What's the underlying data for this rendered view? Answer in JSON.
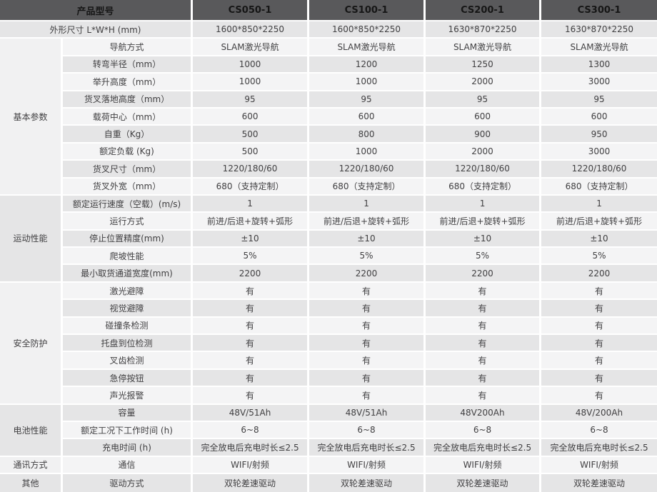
{
  "table": {
    "header": {
      "label": "产品型号",
      "models": [
        "CS050-1",
        "CS100-1",
        "CS200-1",
        "CS300-1"
      ]
    },
    "sections": [
      {
        "group": null,
        "rows": [
          {
            "label": "外形尺寸 L*W*H (mm)",
            "values": [
              "1600*850*2250",
              "1600*850*2250",
              "1630*870*2250",
              "1630*870*2250"
            ]
          }
        ]
      },
      {
        "group": "基本参数",
        "rows": [
          {
            "label": "导航方式",
            "values": [
              "SLAM激光导航",
              "SLAM激光导航",
              "SLAM激光导航",
              "SLAM激光导航"
            ]
          },
          {
            "label": "转弯半径（mm）",
            "values": [
              "1000",
              "1200",
              "1250",
              "1300"
            ]
          },
          {
            "label": "举升高度（mm）",
            "values": [
              "1000",
              "1000",
              "2000",
              "3000"
            ]
          },
          {
            "label": "货叉落地高度（mm）",
            "values": [
              "95",
              "95",
              "95",
              "95"
            ]
          },
          {
            "label": "载荷中心（mm）",
            "values": [
              "600",
              "600",
              "600",
              "600"
            ]
          },
          {
            "label": "自重（Kg）",
            "values": [
              "500",
              "800",
              "900",
              "950"
            ]
          },
          {
            "label": "额定负载 (Kg)",
            "values": [
              "500",
              "1000",
              "2000",
              "3000"
            ]
          },
          {
            "label": "货叉尺寸（mm）",
            "values": [
              "1220/180/60",
              "1220/180/60",
              "1220/180/60",
              "1220/180/60"
            ]
          },
          {
            "label": "货叉外宽（mm）",
            "values": [
              "680（支持定制）",
              "680（支持定制）",
              "680（支持定制）",
              "680（支持定制）"
            ]
          }
        ]
      },
      {
        "group": "运动性能",
        "rows": [
          {
            "label": "额定运行速度（空载）(m/s)",
            "values": [
              "1",
              "1",
              "1",
              "1"
            ]
          },
          {
            "label": "运行方式",
            "values": [
              "前进/后退+旋转+弧形",
              "前进/后退+旋转+弧形",
              "前进/后退+旋转+弧形",
              "前进/后退+旋转+弧形"
            ]
          },
          {
            "label": "停止位置精度(mm)",
            "values": [
              "±10",
              "±10",
              "±10",
              "±10"
            ]
          },
          {
            "label": "爬坡性能",
            "values": [
              "5%",
              "5%",
              "5%",
              "5%"
            ]
          },
          {
            "label": "最小取货通道宽度(mm)",
            "values": [
              "2200",
              "2200",
              "2200",
              "2200"
            ]
          }
        ]
      },
      {
        "group": "安全防护",
        "rows": [
          {
            "label": "激光避障",
            "values": [
              "有",
              "有",
              "有",
              "有"
            ]
          },
          {
            "label": "视觉避障",
            "values": [
              "有",
              "有",
              "有",
              "有"
            ]
          },
          {
            "label": "碰撞条检测",
            "values": [
              "有",
              "有",
              "有",
              "有"
            ]
          },
          {
            "label": "托盘到位检测",
            "values": [
              "有",
              "有",
              "有",
              "有"
            ]
          },
          {
            "label": "叉齿检测",
            "values": [
              "有",
              "有",
              "有",
              "有"
            ]
          },
          {
            "label": "急停按钮",
            "values": [
              "有",
              "有",
              "有",
              "有"
            ]
          },
          {
            "label": "声光报警",
            "values": [
              "有",
              "有",
              "有",
              "有"
            ]
          }
        ]
      },
      {
        "group": "电池性能",
        "rows": [
          {
            "label": "容量",
            "values": [
              "48V/51Ah",
              "48V/51Ah",
              "48V200Ah",
              "48V/200Ah"
            ]
          },
          {
            "label": "额定工况下工作时间 (h)",
            "values": [
              "6~8",
              "6~8",
              "6~8",
              "6~8"
            ]
          },
          {
            "label": "充电时间 (h)",
            "values": [
              "完全放电后充电时长≤2.5",
              "完全放电后充电时长≤2.5",
              "完全放电后充电时长≤2.5",
              "完全放电后充电时长≤2.5"
            ]
          }
        ]
      },
      {
        "group": "通讯方式",
        "rows": [
          {
            "label": "通信",
            "values": [
              "WIFI/射频",
              "WIFI/射频",
              "WIFI/射频",
              "WIFI/射频"
            ]
          }
        ]
      },
      {
        "group": "其他",
        "rows": [
          {
            "label": "驱动方式",
            "values": [
              "双轮差速驱动",
              "双轮差速驱动",
              "双轮差速驱动",
              "双轮差速驱动"
            ]
          }
        ]
      }
    ]
  },
  "colors": {
    "header_bg": "#59595b",
    "header_text": "#161616",
    "row_gray": "#e5e5e6",
    "row_light": "#f4f4f5",
    "group_light": "#f1f1f2",
    "group_dark": "#e5e5e6",
    "body_text": "#414042",
    "grid_line": "#ffffff"
  }
}
